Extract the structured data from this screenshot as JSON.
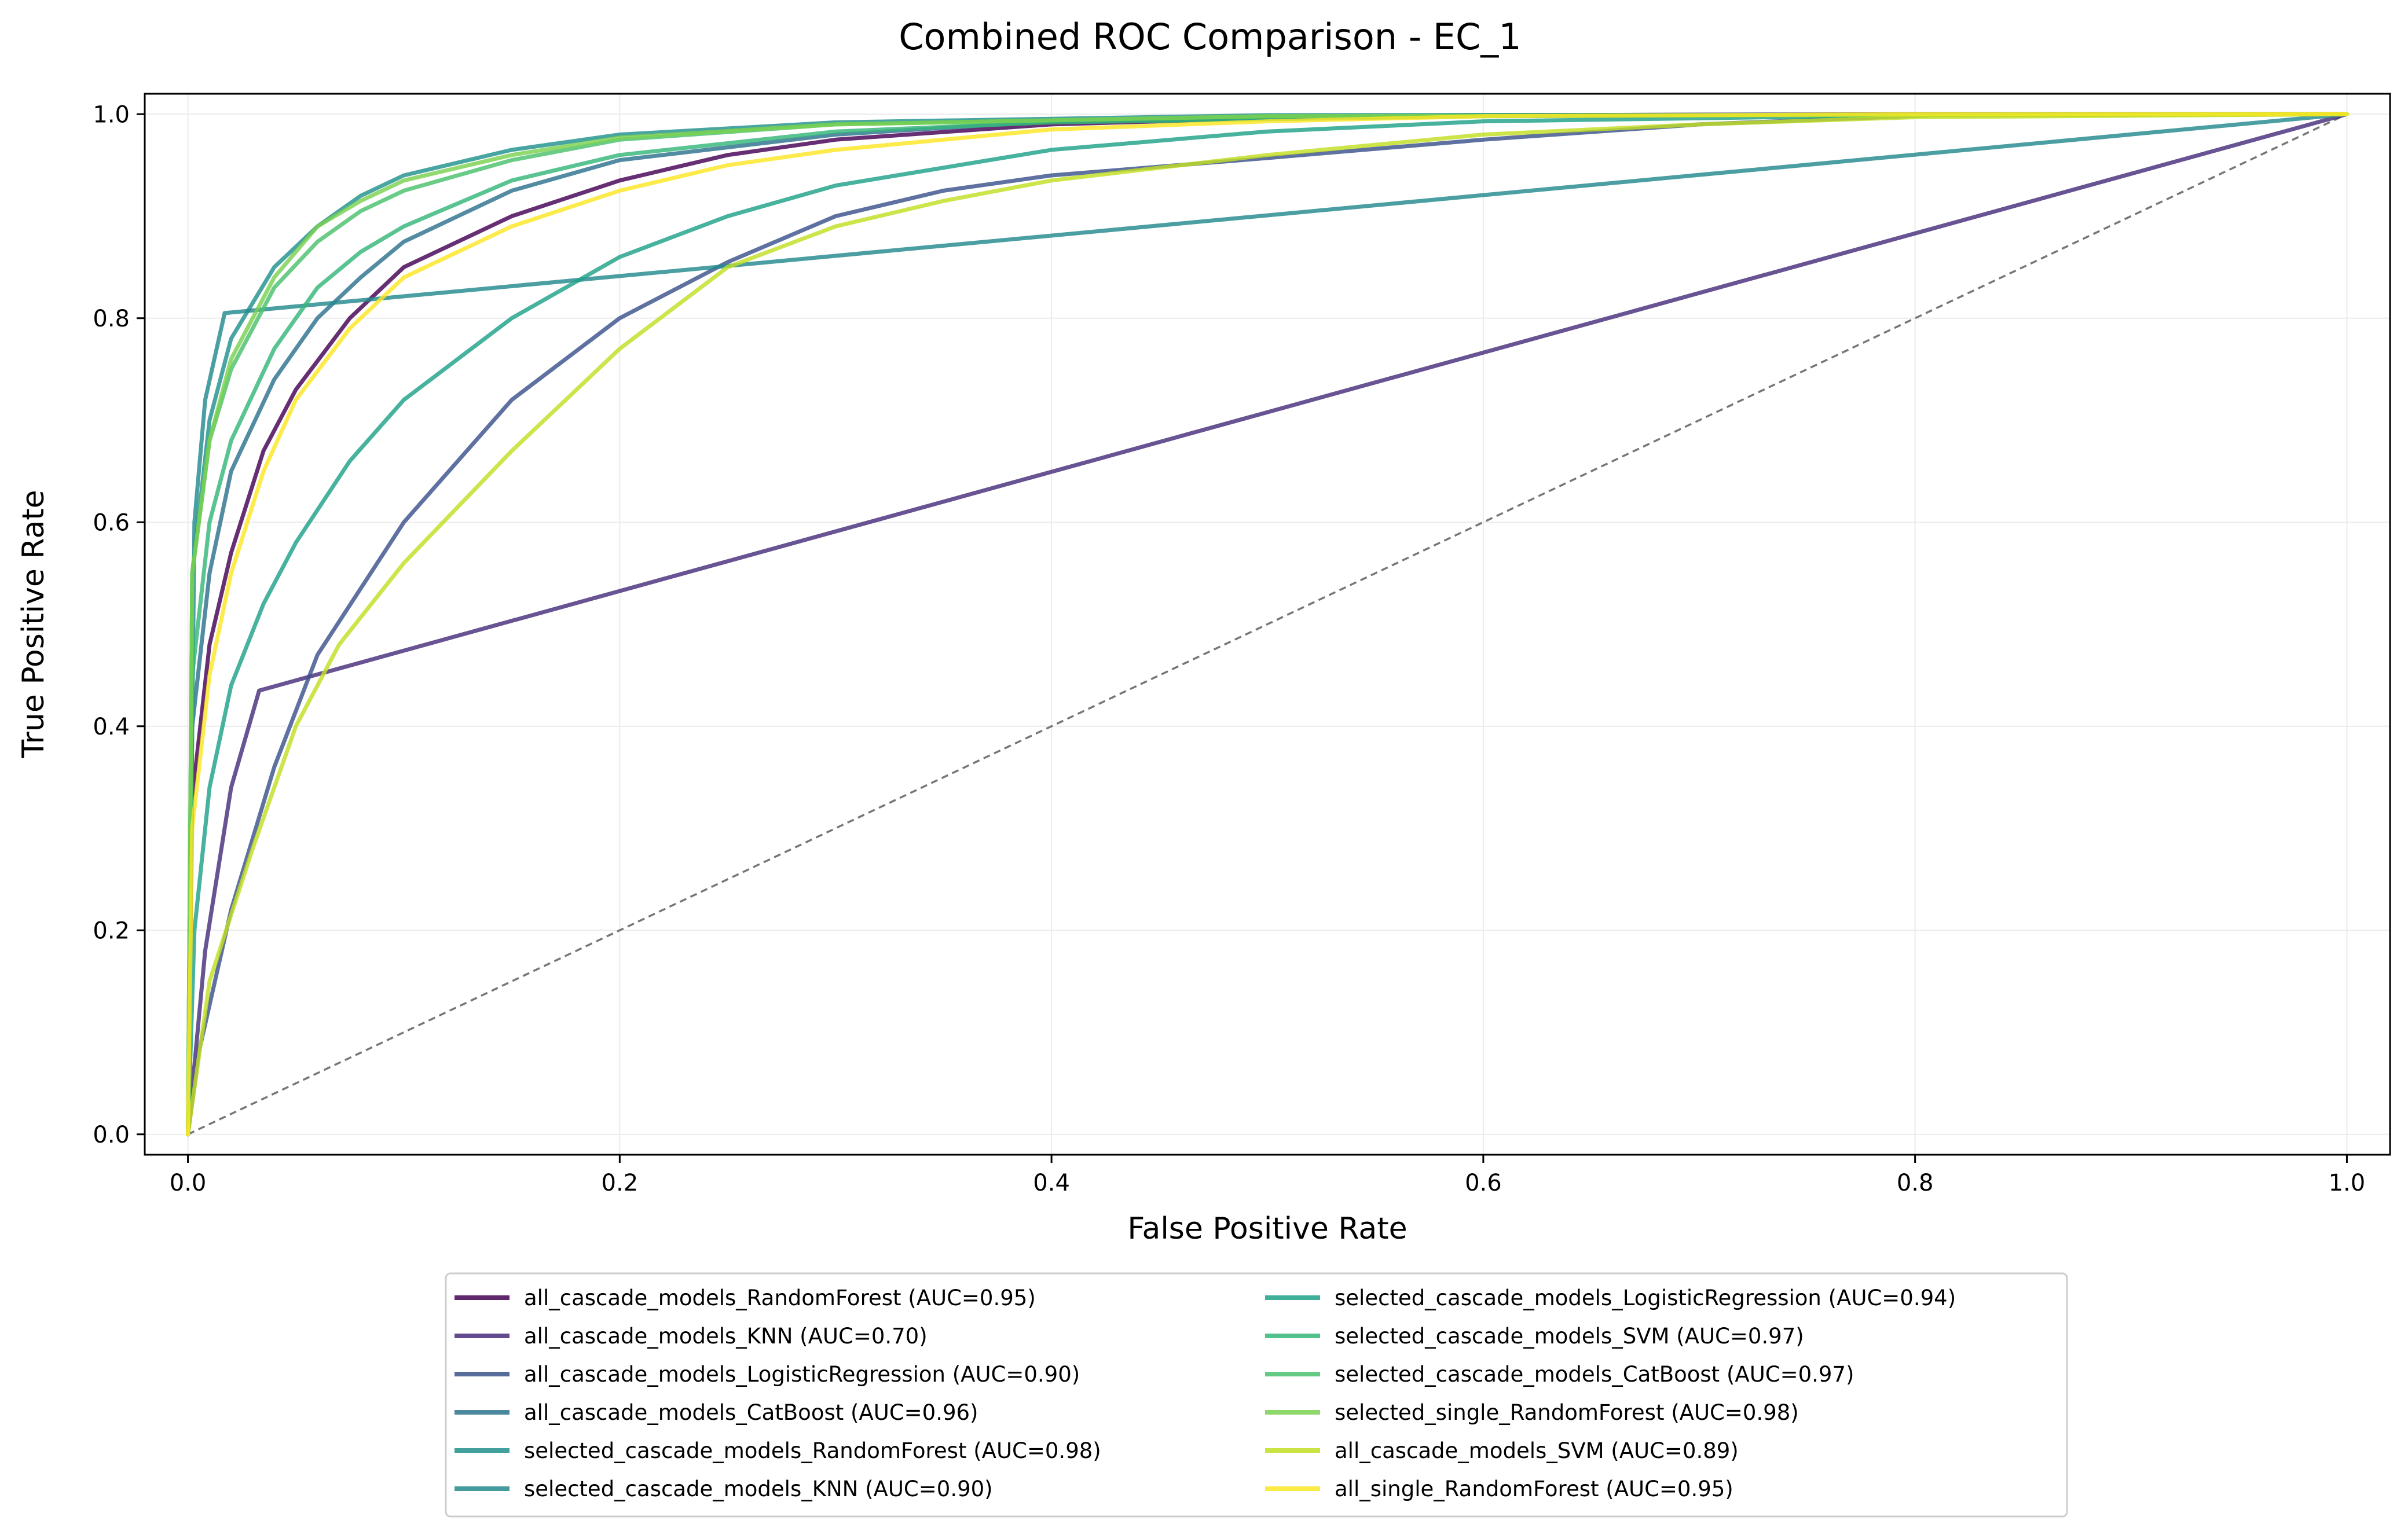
{
  "chart_data": {
    "type": "line",
    "title": "Combined ROC Comparison - EC_1",
    "xlabel": "False Positive Rate",
    "ylabel": "True Positive Rate",
    "xlim": [
      -0.02,
      1.02
    ],
    "ylim": [
      -0.02,
      1.02
    ],
    "xticks": [
      "0.0",
      "0.2",
      "0.4",
      "0.6",
      "0.8",
      "1.0"
    ],
    "yticks": [
      "0.0",
      "0.2",
      "0.4",
      "0.6",
      "0.8",
      "1.0"
    ],
    "grid": true,
    "legend_position": "bottom-center",
    "reference_line": {
      "style": "dashed",
      "color": "#777777",
      "points": [
        [
          0,
          0
        ],
        [
          1,
          1
        ]
      ]
    },
    "series": [
      {
        "name": "all_cascade_models_RandomForest (AUC=0.95)",
        "color": "#440154",
        "points": [
          [
            0,
            0
          ],
          [
            0.002,
            0.33
          ],
          [
            0.01,
            0.48
          ],
          [
            0.02,
            0.57
          ],
          [
            0.035,
            0.67
          ],
          [
            0.05,
            0.73
          ],
          [
            0.075,
            0.8
          ],
          [
            0.1,
            0.85
          ],
          [
            0.15,
            0.9
          ],
          [
            0.2,
            0.935
          ],
          [
            0.25,
            0.96
          ],
          [
            0.3,
            0.975
          ],
          [
            0.4,
            0.99
          ],
          [
            0.5,
            0.996
          ],
          [
            0.6,
            0.999
          ],
          [
            0.8,
            1
          ],
          [
            1,
            1
          ]
        ]
      },
      {
        "name": "all_cascade_models_KNN (AUC=0.70)",
        "color": "#472d7b",
        "points": [
          [
            0,
            0
          ],
          [
            0.008,
            0.18
          ],
          [
            0.02,
            0.34
          ],
          [
            0.033,
            0.435
          ],
          [
            1,
            1
          ]
        ]
      },
      {
        "name": "all_cascade_models_LogisticRegression (AUC=0.90)",
        "color": "#3b528b",
        "points": [
          [
            0,
            0
          ],
          [
            0.005,
            0.08
          ],
          [
            0.02,
            0.22
          ],
          [
            0.04,
            0.36
          ],
          [
            0.06,
            0.47
          ],
          [
            0.1,
            0.6
          ],
          [
            0.15,
            0.72
          ],
          [
            0.2,
            0.8
          ],
          [
            0.25,
            0.855
          ],
          [
            0.3,
            0.9
          ],
          [
            0.35,
            0.925
          ],
          [
            0.4,
            0.94
          ],
          [
            0.5,
            0.957
          ],
          [
            0.6,
            0.975
          ],
          [
            0.7,
            0.99
          ],
          [
            0.82,
            1
          ],
          [
            1,
            1
          ]
        ]
      },
      {
        "name": "all_cascade_models_CatBoost (AUC=0.96)",
        "color": "#2c728e",
        "points": [
          [
            0,
            0
          ],
          [
            0.002,
            0.4
          ],
          [
            0.01,
            0.55
          ],
          [
            0.02,
            0.65
          ],
          [
            0.04,
            0.74
          ],
          [
            0.06,
            0.8
          ],
          [
            0.08,
            0.84
          ],
          [
            0.1,
            0.875
          ],
          [
            0.15,
            0.925
          ],
          [
            0.2,
            0.955
          ],
          [
            0.3,
            0.98
          ],
          [
            0.4,
            0.993
          ],
          [
            0.6,
            0.999
          ],
          [
            1,
            1
          ]
        ]
      },
      {
        "name": "selected_cascade_models_RandomForest (AUC=0.98)",
        "color": "#21918c",
        "points": [
          [
            0,
            0
          ],
          [
            0.002,
            0.55
          ],
          [
            0.01,
            0.7
          ],
          [
            0.02,
            0.78
          ],
          [
            0.04,
            0.85
          ],
          [
            0.06,
            0.89
          ],
          [
            0.08,
            0.92
          ],
          [
            0.1,
            0.94
          ],
          [
            0.15,
            0.965
          ],
          [
            0.2,
            0.98
          ],
          [
            0.3,
            0.992
          ],
          [
            0.5,
            0.999
          ],
          [
            1,
            1
          ]
        ]
      },
      {
        "name": "selected_cascade_models_KNN (AUC=0.90)",
        "color": "#238a8d",
        "points": [
          [
            0,
            0
          ],
          [
            0.003,
            0.6
          ],
          [
            0.008,
            0.72
          ],
          [
            0.017,
            0.805
          ],
          [
            1,
            1
          ]
        ]
      },
      {
        "name": "selected_cascade_models_LogisticRegression (AUC=0.94)",
        "color": "#1fa187",
        "points": [
          [
            0,
            0
          ],
          [
            0.003,
            0.2
          ],
          [
            0.01,
            0.34
          ],
          [
            0.02,
            0.44
          ],
          [
            0.035,
            0.52
          ],
          [
            0.05,
            0.58
          ],
          [
            0.075,
            0.66
          ],
          [
            0.1,
            0.72
          ],
          [
            0.15,
            0.8
          ],
          [
            0.2,
            0.86
          ],
          [
            0.25,
            0.9
          ],
          [
            0.3,
            0.93
          ],
          [
            0.4,
            0.965
          ],
          [
            0.5,
            0.983
          ],
          [
            0.6,
            0.993
          ],
          [
            0.8,
            0.999
          ],
          [
            1,
            1
          ]
        ]
      },
      {
        "name": "selected_cascade_models_SVM (AUC=0.97)",
        "color": "#35b779",
        "points": [
          [
            0,
            0
          ],
          [
            0.002,
            0.45
          ],
          [
            0.01,
            0.6
          ],
          [
            0.02,
            0.68
          ],
          [
            0.04,
            0.77
          ],
          [
            0.06,
            0.83
          ],
          [
            0.08,
            0.865
          ],
          [
            0.1,
            0.89
          ],
          [
            0.15,
            0.935
          ],
          [
            0.2,
            0.96
          ],
          [
            0.3,
            0.983
          ],
          [
            0.4,
            0.992
          ],
          [
            0.6,
            0.998
          ],
          [
            1,
            1
          ]
        ]
      },
      {
        "name": "selected_cascade_models_CatBoost (AUC=0.97)",
        "color": "#4ac16d",
        "points": [
          [
            0,
            0
          ],
          [
            0.002,
            0.55
          ],
          [
            0.01,
            0.68
          ],
          [
            0.02,
            0.75
          ],
          [
            0.04,
            0.83
          ],
          [
            0.06,
            0.875
          ],
          [
            0.08,
            0.905
          ],
          [
            0.1,
            0.925
          ],
          [
            0.15,
            0.955
          ],
          [
            0.2,
            0.975
          ],
          [
            0.3,
            0.99
          ],
          [
            0.5,
            0.998
          ],
          [
            1,
            1
          ]
        ]
      },
      {
        "name": "selected_single_RandomForest (AUC=0.98)",
        "color": "#7ad151",
        "points": [
          [
            0,
            0
          ],
          [
            0.002,
            0.55
          ],
          [
            0.01,
            0.68
          ],
          [
            0.02,
            0.76
          ],
          [
            0.04,
            0.84
          ],
          [
            0.06,
            0.89
          ],
          [
            0.08,
            0.915
          ],
          [
            0.1,
            0.935
          ],
          [
            0.15,
            0.96
          ],
          [
            0.2,
            0.977
          ],
          [
            0.3,
            0.99
          ],
          [
            0.5,
            0.998
          ],
          [
            1,
            1
          ]
        ]
      },
      {
        "name": "all_cascade_models_SVM (AUC=0.89)",
        "color": "#c2df23",
        "points": [
          [
            0,
            0
          ],
          [
            0.01,
            0.15
          ],
          [
            0.03,
            0.28
          ],
          [
            0.05,
            0.4
          ],
          [
            0.07,
            0.48
          ],
          [
            0.1,
            0.56
          ],
          [
            0.15,
            0.67
          ],
          [
            0.2,
            0.77
          ],
          [
            0.25,
            0.85
          ],
          [
            0.3,
            0.89
          ],
          [
            0.35,
            0.915
          ],
          [
            0.4,
            0.935
          ],
          [
            0.5,
            0.96
          ],
          [
            0.6,
            0.98
          ],
          [
            0.7,
            0.99
          ],
          [
            0.8,
            0.997
          ],
          [
            1,
            1
          ]
        ]
      },
      {
        "name": "all_single_RandomForest (AUC=0.95)",
        "color": "#fde725",
        "points": [
          [
            0,
            0
          ],
          [
            0.002,
            0.3
          ],
          [
            0.01,
            0.45
          ],
          [
            0.02,
            0.55
          ],
          [
            0.035,
            0.65
          ],
          [
            0.05,
            0.72
          ],
          [
            0.075,
            0.79
          ],
          [
            0.1,
            0.84
          ],
          [
            0.15,
            0.89
          ],
          [
            0.2,
            0.925
          ],
          [
            0.25,
            0.95
          ],
          [
            0.3,
            0.965
          ],
          [
            0.4,
            0.985
          ],
          [
            0.5,
            0.993
          ],
          [
            0.6,
            0.998
          ],
          [
            0.8,
            1
          ],
          [
            1,
            1
          ]
        ]
      }
    ]
  }
}
